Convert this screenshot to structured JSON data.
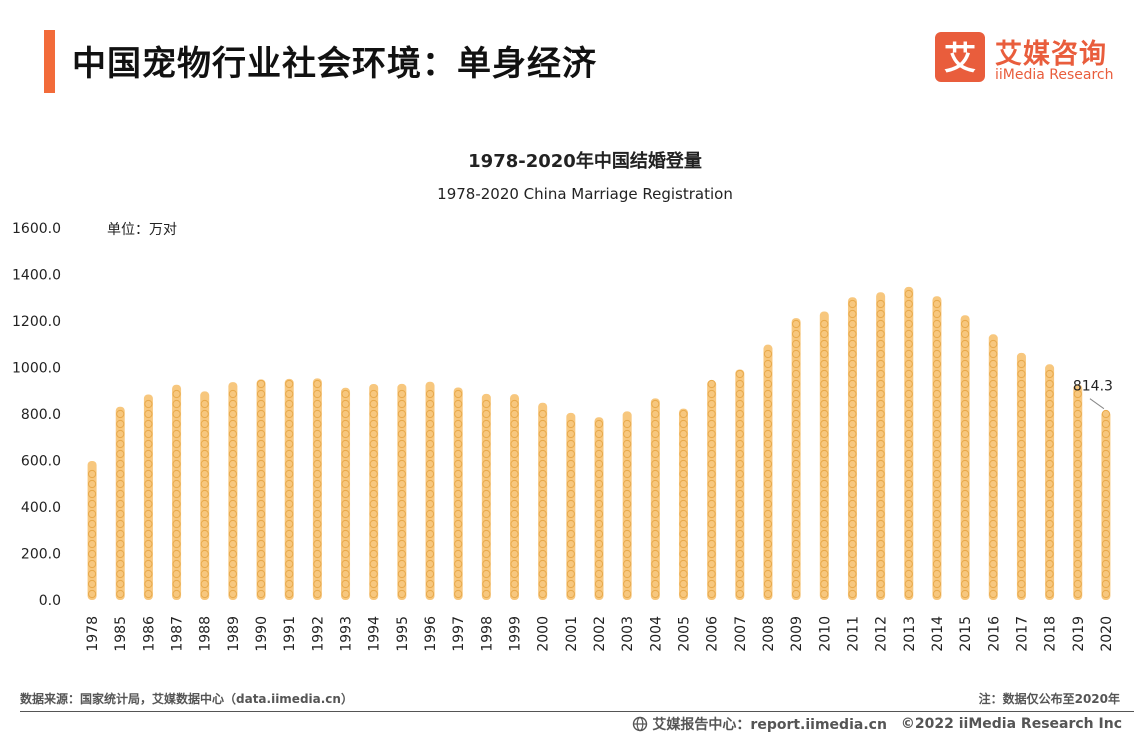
{
  "header": {
    "title": "中国宠物行业社会环境：单身经济",
    "accent_color": "#f26b3a"
  },
  "logo": {
    "cn": "艾媒咨询",
    "en": "iiMedia Research",
    "mark_glyph": "艾",
    "color": "#e95d3c"
  },
  "chart_data": {
    "type": "bar",
    "title": "1978-2020年中国结婚登量",
    "subtitle": "1978-2020 China Marriage Registration",
    "unit_label": "单位：万对",
    "categories": [
      "1978",
      "1985",
      "1986",
      "1987",
      "1988",
      "1989",
      "1990",
      "1991",
      "1992",
      "1993",
      "1994",
      "1995",
      "1996",
      "1997",
      "1998",
      "1999",
      "2000",
      "2001",
      "2002",
      "2003",
      "2004",
      "2005",
      "2006",
      "2007",
      "2008",
      "2009",
      "2010",
      "2011",
      "2012",
      "2013",
      "2014",
      "2015",
      "2016",
      "2017",
      "2018",
      "2019",
      "2020"
    ],
    "values": [
      597.8,
      831.3,
      884.0,
      926.0,
      897.1,
      937.1,
      948.7,
      951.0,
      953.3,
      912.7,
      929.0,
      929.7,
      938.7,
      914.1,
      886.7,
      885.3,
      848.5,
      805.0,
      786.0,
      811.4,
      867.2,
      823.1,
      945.0,
      991.4,
      1098.3,
      1212.4,
      1241.0,
      1302.4,
      1323.6,
      1346.9,
      1306.7,
      1224.7,
      1142.8,
      1063.1,
      1013.9,
      927.3,
      814.3
    ],
    "ylim": [
      0,
      1600
    ],
    "yticks": [
      "0.0",
      "200.0",
      "400.0",
      "600.0",
      "800.0",
      "1000.0",
      "1200.0",
      "1400.0",
      "1600.0"
    ],
    "ytick_values": [
      0,
      200,
      400,
      600,
      800,
      1000,
      1200,
      1400,
      1600
    ],
    "annotation": {
      "category": "2020",
      "label": "814.3"
    },
    "bar_color": "#f7c77e",
    "bar_edge_color": "#e8a94a",
    "grid": false
  },
  "footer": {
    "source": "数据来源：国家统计局，艾媒数据中心（data.iimedia.cn）",
    "note": "注：数据仅公布至2020年",
    "center": "艾媒报告中心：report.iimedia.cn",
    "copyright": "©2022  iiMedia Research  Inc"
  }
}
